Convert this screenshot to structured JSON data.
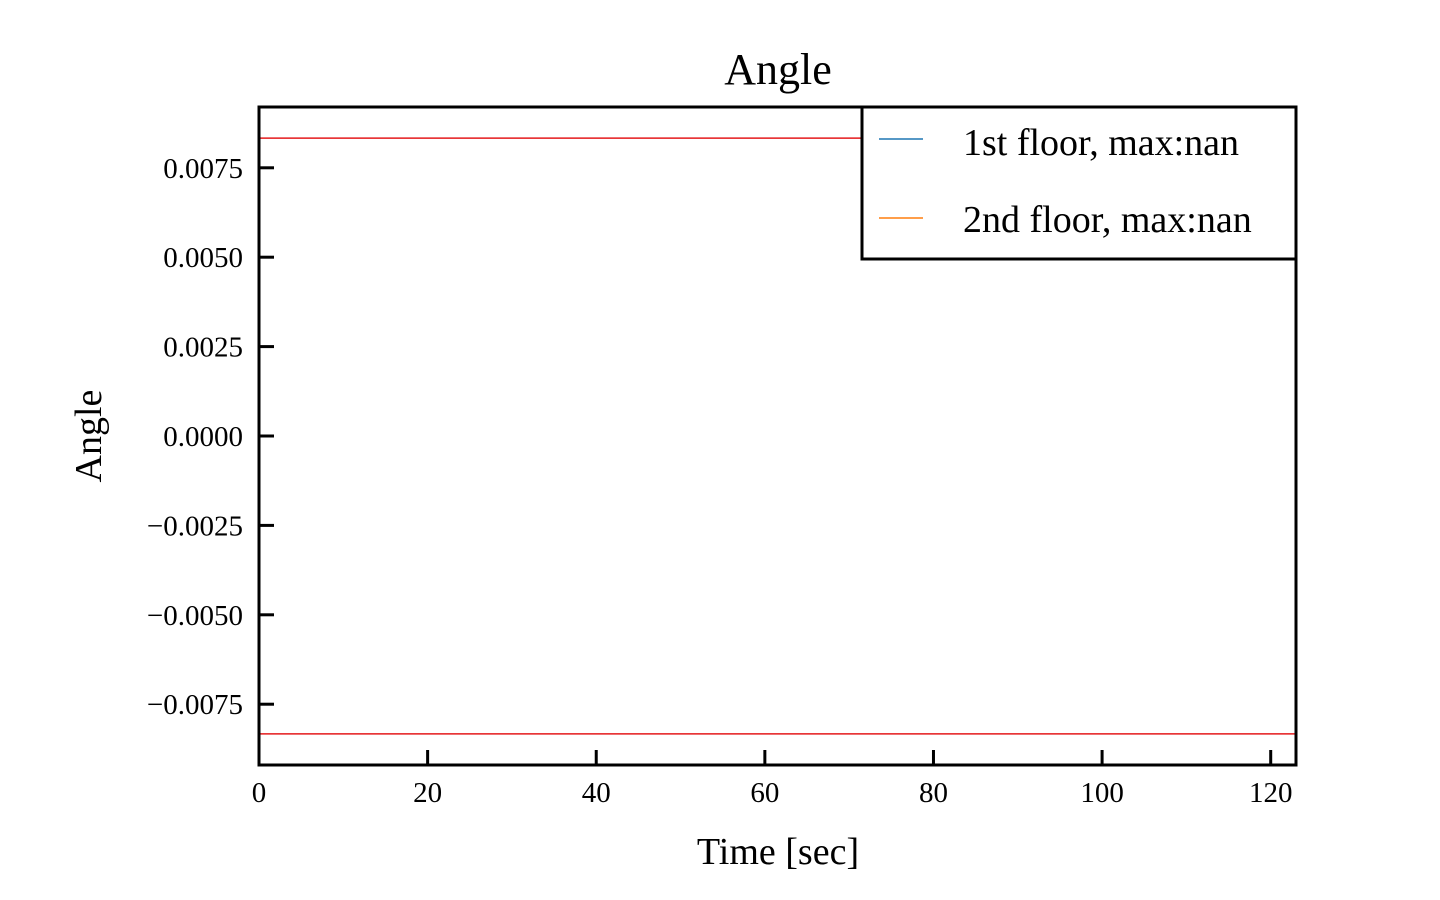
{
  "chart_data": {
    "type": "line",
    "title": "Angle",
    "xlabel": "Time [sec]",
    "ylabel": "Angle",
    "xlim": [
      0,
      123
    ],
    "ylim": [
      -0.0092,
      0.0092
    ],
    "x_ticks": [
      0,
      20,
      40,
      60,
      80,
      100,
      120
    ],
    "x_tick_labels": [
      "0",
      "20",
      "40",
      "60",
      "80",
      "100",
      "120"
    ],
    "y_ticks": [
      0.0075,
      0.005,
      0.0025,
      0.0,
      -0.0025,
      -0.005,
      -0.0075
    ],
    "y_tick_labels": [
      "0.0075",
      "0.0050",
      "0.0025",
      "0.0000",
      "−0.0025",
      "−0.0050",
      "−0.0075"
    ],
    "grid": false,
    "legend_position": "top-right",
    "series": [
      {
        "name": "1st floor, max:nan",
        "color": "#1f77b4",
        "x": [],
        "y": []
      },
      {
        "name": "2nd floor, max:nan",
        "color": "#ff7f0e",
        "x": [],
        "y": []
      }
    ],
    "reference_lines": [
      {
        "name": "upper-limit",
        "y": 0.00833,
        "color": "#e41a1c"
      },
      {
        "name": "lower-limit",
        "y": -0.00833,
        "color": "#e41a1c"
      }
    ]
  }
}
